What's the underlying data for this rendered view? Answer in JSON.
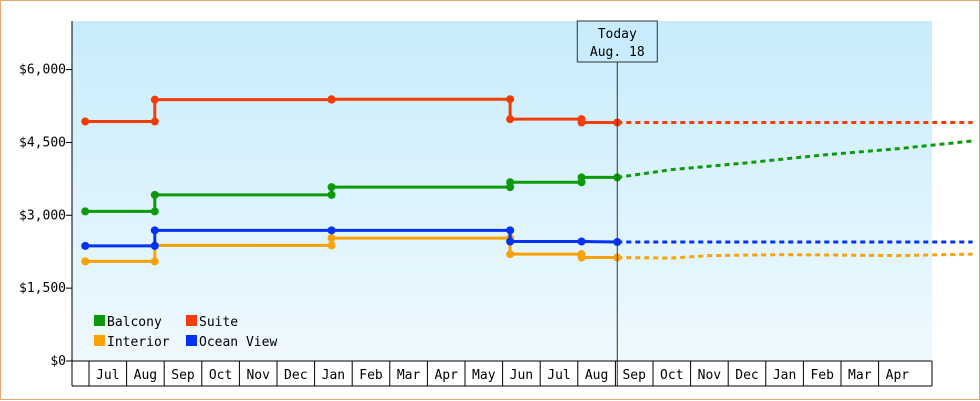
{
  "chart_data": {
    "type": "line",
    "title": "",
    "xlabel": "",
    "ylabel": "",
    "ylim": [
      0,
      7000
    ],
    "y_ticks": [
      {
        "value": 0,
        "label": "$0"
      },
      {
        "value": 1500,
        "label": "$1,500"
      },
      {
        "value": 3000,
        "label": "$3,000"
      },
      {
        "value": 4500,
        "label": "$4,500"
      },
      {
        "value": 6000,
        "label": "$6,000"
      }
    ],
    "x_range": [
      0,
      23.5
    ],
    "x_unit": "month index (0 = start of Jul, 1 = start of Aug, ...)",
    "months": [
      {
        "label": "Jul",
        "m": 0
      },
      {
        "label": "Aug",
        "m": 1
      },
      {
        "label": "Sep",
        "m": 2
      },
      {
        "label": "Oct",
        "m": 3
      },
      {
        "label": "Nov",
        "m": 4
      },
      {
        "label": "Dec",
        "m": 5
      },
      {
        "label": "Jan",
        "m": 6
      },
      {
        "label": "Feb",
        "m": 7
      },
      {
        "label": "Mar",
        "m": 8
      },
      {
        "label": "Apr",
        "m": 9
      },
      {
        "label": "May",
        "m": 10
      },
      {
        "label": "Jun",
        "m": 11
      },
      {
        "label": "Jul",
        "m": 12
      },
      {
        "label": "Aug",
        "m": 13
      },
      {
        "label": "Sep",
        "m": 14
      },
      {
        "label": "Oct",
        "m": 15
      },
      {
        "label": "Nov",
        "m": 16
      },
      {
        "label": "Dec",
        "m": 17
      },
      {
        "label": "Jan",
        "m": 18
      },
      {
        "label": "Feb",
        "m": 19
      },
      {
        "label": "Mar",
        "m": 20
      },
      {
        "label": "Apr",
        "m": 21
      }
    ],
    "today": {
      "x": 14.05,
      "line1": "Today",
      "line2": "Aug. 18"
    },
    "grid": false,
    "background": {
      "top": "#c8ecfb",
      "bottom": "#eff9fe"
    },
    "legend_position": "bottom-left",
    "series": [
      {
        "name": "Balcony",
        "color": "#0c9a0c",
        "history": [
          [
            -0.1,
            3080
          ],
          [
            1.75,
            3080
          ],
          [
            1.75,
            3420
          ],
          [
            6.45,
            3420
          ],
          [
            6.45,
            3580
          ],
          [
            11.2,
            3580
          ],
          [
            11.2,
            3680
          ],
          [
            13.1,
            3680
          ],
          [
            13.1,
            3780
          ],
          [
            14.05,
            3780
          ]
        ],
        "markers": [
          [
            -0.1,
            3080
          ],
          [
            1.75,
            3080
          ],
          [
            1.75,
            3420
          ],
          [
            6.45,
            3420
          ],
          [
            6.45,
            3580
          ],
          [
            11.2,
            3580
          ],
          [
            11.2,
            3680
          ],
          [
            13.1,
            3680
          ],
          [
            13.1,
            3780
          ],
          [
            14.05,
            3780
          ]
        ],
        "forecast": [
          [
            14.05,
            3780
          ],
          [
            15.5,
            3940
          ],
          [
            17.5,
            4080
          ],
          [
            19.5,
            4240
          ],
          [
            21.5,
            4370
          ],
          [
            23.5,
            4530
          ]
        ]
      },
      {
        "name": "Suite",
        "color": "#f43c08",
        "history": [
          [
            -0.1,
            4930
          ],
          [
            1.75,
            4930
          ],
          [
            1.75,
            5380
          ],
          [
            6.45,
            5380
          ],
          [
            6.45,
            5390
          ],
          [
            11.2,
            5390
          ],
          [
            11.2,
            4980
          ],
          [
            13.1,
            4980
          ],
          [
            13.1,
            4910
          ],
          [
            14.05,
            4910
          ]
        ],
        "markers": [
          [
            -0.1,
            4930
          ],
          [
            1.75,
            4930
          ],
          [
            1.75,
            5380
          ],
          [
            6.45,
            5380
          ],
          [
            6.45,
            5390
          ],
          [
            11.2,
            5390
          ],
          [
            11.2,
            4980
          ],
          [
            13.1,
            4980
          ],
          [
            13.1,
            4910
          ],
          [
            14.05,
            4910
          ]
        ],
        "forecast": [
          [
            14.05,
            4910
          ],
          [
            23.5,
            4910
          ]
        ]
      },
      {
        "name": "Interior",
        "color": "#f9a206",
        "history": [
          [
            -0.1,
            2050
          ],
          [
            1.75,
            2050
          ],
          [
            1.75,
            2380
          ],
          [
            6.45,
            2380
          ],
          [
            6.45,
            2530
          ],
          [
            11.2,
            2530
          ],
          [
            11.2,
            2200
          ],
          [
            13.1,
            2200
          ],
          [
            13.1,
            2130
          ],
          [
            14.05,
            2130
          ]
        ],
        "markers": [
          [
            -0.1,
            2050
          ],
          [
            1.75,
            2050
          ],
          [
            1.75,
            2380
          ],
          [
            6.45,
            2380
          ],
          [
            6.45,
            2530
          ],
          [
            11.2,
            2530
          ],
          [
            11.2,
            2200
          ],
          [
            13.1,
            2200
          ],
          [
            13.1,
            2130
          ],
          [
            14.05,
            2130
          ]
        ],
        "forecast": [
          [
            14.05,
            2130
          ],
          [
            15.5,
            2120
          ],
          [
            16.5,
            2170
          ],
          [
            18.5,
            2190
          ],
          [
            21.5,
            2170
          ],
          [
            23.5,
            2200
          ]
        ]
      },
      {
        "name": "Ocean View",
        "color": "#0432f5",
        "history": [
          [
            -0.1,
            2370
          ],
          [
            1.75,
            2370
          ],
          [
            1.75,
            2690
          ],
          [
            6.45,
            2690
          ],
          [
            11.2,
            2690
          ],
          [
            11.2,
            2460
          ],
          [
            13.1,
            2460
          ],
          [
            14.05,
            2450
          ]
        ],
        "markers": [
          [
            -0.1,
            2370
          ],
          [
            1.75,
            2370
          ],
          [
            1.75,
            2690
          ],
          [
            6.45,
            2690
          ],
          [
            11.2,
            2690
          ],
          [
            11.2,
            2460
          ],
          [
            13.1,
            2460
          ],
          [
            14.05,
            2450
          ]
        ],
        "forecast": [
          [
            14.05,
            2450
          ],
          [
            23.5,
            2450
          ]
        ]
      }
    ]
  }
}
